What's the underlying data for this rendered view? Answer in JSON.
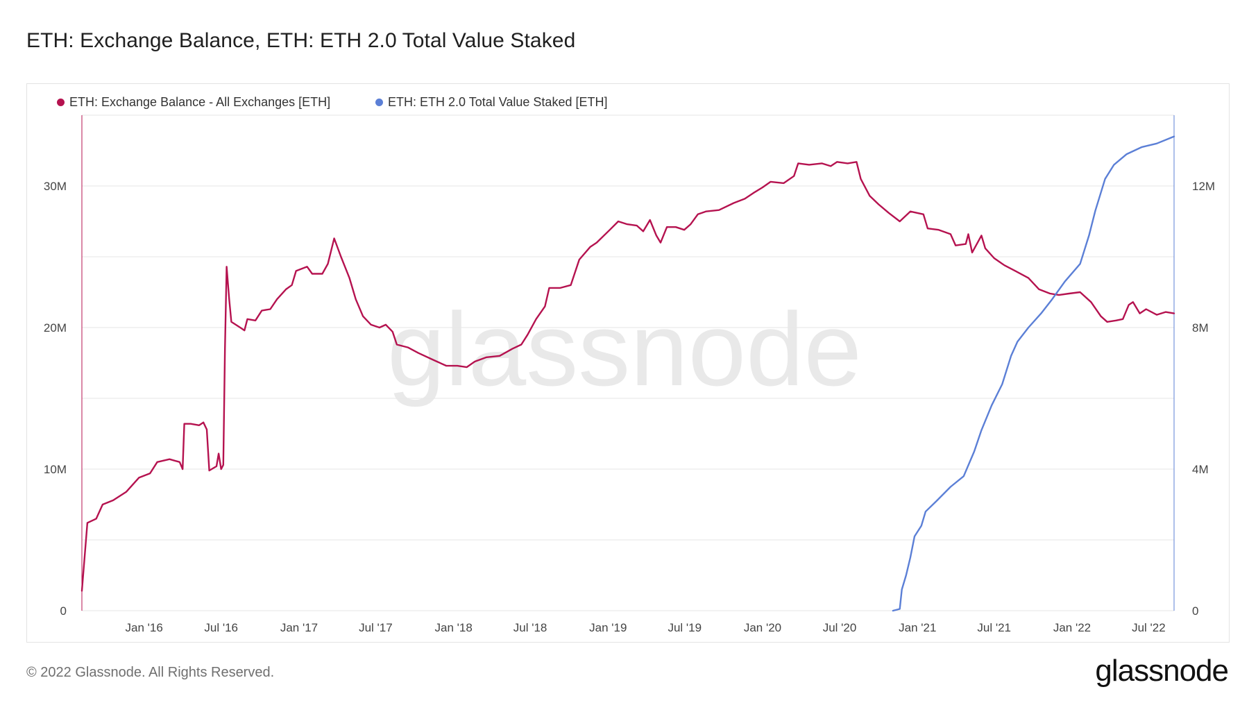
{
  "page": {
    "title": "ETH: Exchange Balance, ETH: ETH 2.0 Total Value Staked",
    "footer": "© 2022 Glassnode. All Rights Reserved.",
    "logo": "glassnode",
    "watermark": "glassnode"
  },
  "chart_data": {
    "type": "line",
    "title": "ETH: Exchange Balance, ETH: ETH 2.0 Total Value Staked",
    "x_tick_labels": [
      "Jan '16",
      "Jul '16",
      "Jan '17",
      "Jul '17",
      "Jan '18",
      "Jul '18",
      "Jan '19",
      "Jul '19",
      "Jan '20",
      "Jul '20",
      "Jan '21",
      "Jul '21",
      "Jan '22",
      "Jul '22"
    ],
    "x_tick_dates": [
      "2016-01-01",
      "2016-07-01",
      "2017-01-01",
      "2017-07-01",
      "2018-01-01",
      "2018-07-01",
      "2019-01-01",
      "2019-07-01",
      "2020-01-01",
      "2020-07-01",
      "2021-01-01",
      "2021-07-01",
      "2022-01-01",
      "2022-07-01"
    ],
    "x_range": [
      "2015-08-07",
      "2022-08-30"
    ],
    "y_left": {
      "ticks": [
        0,
        10000000,
        20000000,
        30000000
      ],
      "tick_labels": [
        "0",
        "10M",
        "20M",
        "30M"
      ],
      "ylim": [
        0,
        35000000
      ]
    },
    "y_right": {
      "ticks": [
        0,
        4000000,
        8000000,
        12000000
      ],
      "tick_labels": [
        "0",
        "4M",
        "8M",
        "12M"
      ],
      "ylim": [
        0,
        14000000
      ]
    },
    "grid": true,
    "legend_position": "top-left",
    "series": [
      {
        "name": "ETH: Exchange Balance - All Exchanges [ETH]",
        "color": "#b5124f",
        "axis": "left",
        "points": [
          [
            "2015-08-07",
            1400000
          ],
          [
            "2015-08-20",
            6200000
          ],
          [
            "2015-09-10",
            6500000
          ],
          [
            "2015-09-25",
            7500000
          ],
          [
            "2015-10-20",
            7800000
          ],
          [
            "2015-11-20",
            8400000
          ],
          [
            "2015-12-20",
            9400000
          ],
          [
            "2016-01-15",
            9700000
          ],
          [
            "2016-02-01",
            10500000
          ],
          [
            "2016-03-01",
            10700000
          ],
          [
            "2016-03-25",
            10500000
          ],
          [
            "2016-04-01",
            10000000
          ],
          [
            "2016-04-05",
            13200000
          ],
          [
            "2016-04-20",
            13200000
          ],
          [
            "2016-05-10",
            13100000
          ],
          [
            "2016-05-20",
            13300000
          ],
          [
            "2016-05-28",
            12800000
          ],
          [
            "2016-06-03",
            9900000
          ],
          [
            "2016-06-20",
            10200000
          ],
          [
            "2016-06-25",
            11100000
          ],
          [
            "2016-07-01",
            10000000
          ],
          [
            "2016-07-06",
            10300000
          ],
          [
            "2016-07-10",
            18500000
          ],
          [
            "2016-07-14",
            24300000
          ],
          [
            "2016-07-20",
            22000000
          ],
          [
            "2016-07-25",
            20400000
          ],
          [
            "2016-08-15",
            20000000
          ],
          [
            "2016-08-25",
            19800000
          ],
          [
            "2016-09-01",
            20600000
          ],
          [
            "2016-09-20",
            20500000
          ],
          [
            "2016-10-05",
            21200000
          ],
          [
            "2016-10-25",
            21300000
          ],
          [
            "2016-11-10",
            22000000
          ],
          [
            "2016-12-01",
            22700000
          ],
          [
            "2016-12-15",
            23000000
          ],
          [
            "2016-12-25",
            24000000
          ],
          [
            "2017-01-20",
            24300000
          ],
          [
            "2017-02-01",
            23800000
          ],
          [
            "2017-02-25",
            23800000
          ],
          [
            "2017-03-10",
            24500000
          ],
          [
            "2017-03-25",
            26300000
          ],
          [
            "2017-04-10",
            25000000
          ],
          [
            "2017-04-30",
            23500000
          ],
          [
            "2017-05-15",
            22000000
          ],
          [
            "2017-06-01",
            20800000
          ],
          [
            "2017-06-20",
            20200000
          ],
          [
            "2017-07-10",
            20000000
          ],
          [
            "2017-07-25",
            20200000
          ],
          [
            "2017-08-10",
            19700000
          ],
          [
            "2017-08-20",
            18800000
          ],
          [
            "2017-09-15",
            18600000
          ],
          [
            "2017-10-10",
            18200000
          ],
          [
            "2017-11-15",
            17700000
          ],
          [
            "2017-12-15",
            17300000
          ],
          [
            "2018-01-10",
            17300000
          ],
          [
            "2018-02-01",
            17200000
          ],
          [
            "2018-02-20",
            17600000
          ],
          [
            "2018-03-20",
            17900000
          ],
          [
            "2018-04-20",
            18000000
          ],
          [
            "2018-05-20",
            18500000
          ],
          [
            "2018-06-10",
            18800000
          ],
          [
            "2018-06-25",
            19500000
          ],
          [
            "2018-07-15",
            20600000
          ],
          [
            "2018-08-05",
            21500000
          ],
          [
            "2018-08-15",
            22800000
          ],
          [
            "2018-09-10",
            22800000
          ],
          [
            "2018-10-05",
            23000000
          ],
          [
            "2018-10-25",
            24800000
          ],
          [
            "2018-11-20",
            25700000
          ],
          [
            "2018-12-05",
            26000000
          ],
          [
            "2019-01-05",
            26900000
          ],
          [
            "2019-01-25",
            27500000
          ],
          [
            "2019-02-15",
            27300000
          ],
          [
            "2019-03-10",
            27200000
          ],
          [
            "2019-03-25",
            26800000
          ],
          [
            "2019-04-10",
            27600000
          ],
          [
            "2019-04-25",
            26500000
          ],
          [
            "2019-05-05",
            26000000
          ],
          [
            "2019-05-20",
            27100000
          ],
          [
            "2019-06-10",
            27100000
          ],
          [
            "2019-06-30",
            26900000
          ],
          [
            "2019-07-15",
            27300000
          ],
          [
            "2019-08-01",
            28000000
          ],
          [
            "2019-08-20",
            28200000
          ],
          [
            "2019-09-20",
            28300000
          ],
          [
            "2019-10-25",
            28800000
          ],
          [
            "2019-11-20",
            29100000
          ],
          [
            "2019-12-10",
            29500000
          ],
          [
            "2020-01-01",
            29900000
          ],
          [
            "2020-01-20",
            30300000
          ],
          [
            "2020-02-20",
            30200000
          ],
          [
            "2020-03-15",
            30700000
          ],
          [
            "2020-03-25",
            31600000
          ],
          [
            "2020-04-20",
            31500000
          ],
          [
            "2020-05-20",
            31600000
          ],
          [
            "2020-06-10",
            31400000
          ],
          [
            "2020-06-25",
            31700000
          ],
          [
            "2020-07-20",
            31600000
          ],
          [
            "2020-08-10",
            31700000
          ],
          [
            "2020-08-20",
            30500000
          ],
          [
            "2020-09-10",
            29300000
          ],
          [
            "2020-10-01",
            28700000
          ],
          [
            "2020-10-25",
            28100000
          ],
          [
            "2020-11-20",
            27500000
          ],
          [
            "2020-12-15",
            28200000
          ],
          [
            "2021-01-15",
            28000000
          ],
          [
            "2021-01-25",
            27000000
          ],
          [
            "2021-02-20",
            26900000
          ],
          [
            "2021-03-20",
            26600000
          ],
          [
            "2021-04-01",
            25800000
          ],
          [
            "2021-04-25",
            25900000
          ],
          [
            "2021-05-01",
            26600000
          ],
          [
            "2021-05-10",
            25300000
          ],
          [
            "2021-06-01",
            26500000
          ],
          [
            "2021-06-10",
            25600000
          ],
          [
            "2021-07-01",
            24900000
          ],
          [
            "2021-07-25",
            24400000
          ],
          [
            "2021-08-20",
            24000000
          ],
          [
            "2021-09-20",
            23500000
          ],
          [
            "2021-10-15",
            22700000
          ],
          [
            "2021-11-10",
            22400000
          ],
          [
            "2021-12-01",
            22300000
          ],
          [
            "2021-12-25",
            22400000
          ],
          [
            "2022-01-20",
            22500000
          ],
          [
            "2022-02-15",
            21800000
          ],
          [
            "2022-03-10",
            20800000
          ],
          [
            "2022-03-25",
            20400000
          ],
          [
            "2022-04-15",
            20500000
          ],
          [
            "2022-05-01",
            20600000
          ],
          [
            "2022-05-15",
            21600000
          ],
          [
            "2022-05-25",
            21800000
          ],
          [
            "2022-06-10",
            21000000
          ],
          [
            "2022-06-25",
            21300000
          ],
          [
            "2022-07-20",
            20900000
          ],
          [
            "2022-08-10",
            21100000
          ],
          [
            "2022-08-30",
            21000000
          ]
        ]
      },
      {
        "name": "ETH: ETH 2.0 Total Value Staked [ETH]",
        "color": "#5b7fd6",
        "axis": "right",
        "points": [
          [
            "2020-11-04",
            0
          ],
          [
            "2020-11-20",
            50000
          ],
          [
            "2020-11-25",
            600000
          ],
          [
            "2020-12-05",
            1000000
          ],
          [
            "2020-12-15",
            1500000
          ],
          [
            "2020-12-25",
            2100000
          ],
          [
            "2021-01-10",
            2400000
          ],
          [
            "2021-01-20",
            2800000
          ],
          [
            "2021-02-15",
            3100000
          ],
          [
            "2021-03-20",
            3500000
          ],
          [
            "2021-04-20",
            3800000
          ],
          [
            "2021-05-15",
            4500000
          ],
          [
            "2021-06-01",
            5100000
          ],
          [
            "2021-06-25",
            5800000
          ],
          [
            "2021-07-20",
            6400000
          ],
          [
            "2021-08-10",
            7200000
          ],
          [
            "2021-08-25",
            7600000
          ],
          [
            "2021-09-20",
            8000000
          ],
          [
            "2021-10-20",
            8400000
          ],
          [
            "2021-11-15",
            8800000
          ],
          [
            "2021-12-15",
            9300000
          ],
          [
            "2022-01-20",
            9800000
          ],
          [
            "2022-02-10",
            10600000
          ],
          [
            "2022-02-25",
            11300000
          ],
          [
            "2022-03-20",
            12200000
          ],
          [
            "2022-04-10",
            12600000
          ],
          [
            "2022-05-10",
            12900000
          ],
          [
            "2022-06-15",
            13100000
          ],
          [
            "2022-07-20",
            13200000
          ],
          [
            "2022-08-20",
            13350000
          ],
          [
            "2022-08-30",
            13400000
          ]
        ]
      }
    ]
  }
}
